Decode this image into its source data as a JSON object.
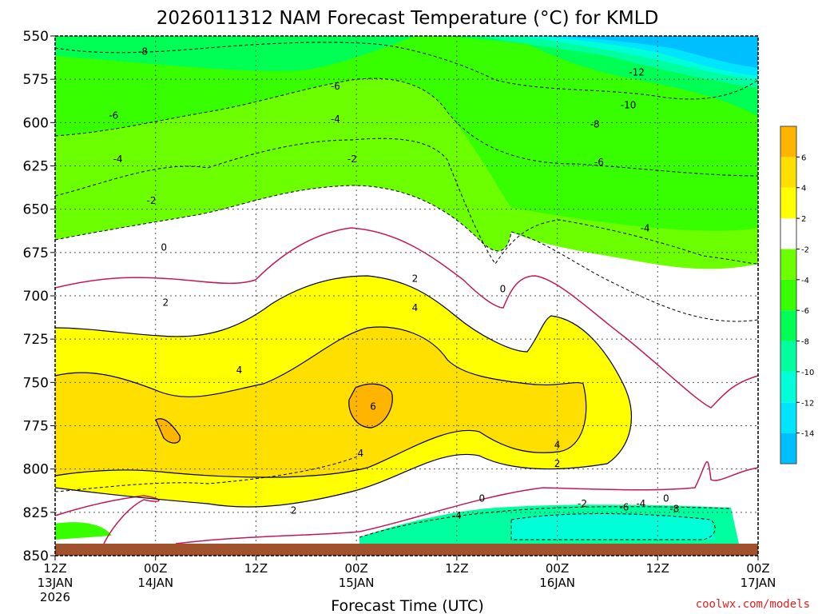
{
  "chart_data": {
    "type": "heatmap",
    "title": "2026011312 NAM Forecast Temperature (°C) for KMLD",
    "xlabel": "Forecast Time (UTC)",
    "ylabel": "",
    "credit": "coolwx.com/models",
    "y_range": [
      850,
      550
    ],
    "y_ticks": [
      "550",
      "575",
      "600",
      "625",
      "650",
      "675",
      "700",
      "725",
      "750",
      "775",
      "800",
      "825",
      "850"
    ],
    "x_range_hours": [
      0,
      84
    ],
    "x_ticks": [
      {
        "hour": 0,
        "line1": "12Z",
        "line2": "13JAN",
        "line3": "2026"
      },
      {
        "hour": 12,
        "line1": "00Z",
        "line2": "14JAN",
        "line3": ""
      },
      {
        "hour": 24,
        "line1": "12Z",
        "line2": "",
        "line3": ""
      },
      {
        "hour": 36,
        "line1": "00Z",
        "line2": "15JAN",
        "line3": ""
      },
      {
        "hour": 48,
        "line1": "12Z",
        "line2": "",
        "line3": ""
      },
      {
        "hour": 60,
        "line1": "00Z",
        "line2": "16JAN",
        "line3": ""
      },
      {
        "hour": 72,
        "line1": "12Z",
        "line2": "",
        "line3": ""
      },
      {
        "hour": 84,
        "line1": "00Z",
        "line2": "17JAN",
        "line3": ""
      }
    ],
    "colorbar": {
      "colors": [
        "#00bfff",
        "#00e5ff",
        "#00ffd9",
        "#00ff9f",
        "#00ff55",
        "#37ff00",
        "#6bff00",
        "#ffffff",
        "#ffff00",
        "#ffdf00",
        "#ffb400"
      ],
      "ticks": [
        "-14",
        "-12",
        "-10",
        "-8",
        "-6",
        "-4",
        "-2",
        "2",
        "4",
        "6"
      ]
    },
    "contour_labels": [
      {
        "text": "-8",
        "hour": 10.5,
        "p": 559
      },
      {
        "text": "-6",
        "hour": 7,
        "p": 596
      },
      {
        "text": "-4",
        "hour": 7.5,
        "p": 621
      },
      {
        "text": "-2",
        "hour": 11.5,
        "p": 645
      },
      {
        "text": "0",
        "hour": 13,
        "p": 672
      },
      {
        "text": "2",
        "hour": 13.2,
        "p": 704
      },
      {
        "text": "4",
        "hour": 22,
        "p": 743
      },
      {
        "text": "-6",
        "hour": 33.5,
        "p": 579
      },
      {
        "text": "-4",
        "hour": 33.5,
        "p": 598
      },
      {
        "text": "-2",
        "hour": 35.5,
        "p": 621
      },
      {
        "text": "2",
        "hour": 43,
        "p": 690
      },
      {
        "text": "4",
        "hour": 43,
        "p": 707
      },
      {
        "text": "6",
        "hour": 38,
        "p": 764
      },
      {
        "text": "4",
        "hour": 36.5,
        "p": 791
      },
      {
        "text": "2",
        "hour": 28.5,
        "p": 824
      },
      {
        "text": "-12",
        "hour": 69.5,
        "p": 571
      },
      {
        "text": "-10",
        "hour": 68.5,
        "p": 590
      },
      {
        "text": "-8",
        "hour": 64.5,
        "p": 601
      },
      {
        "text": "-6",
        "hour": 65,
        "p": 623
      },
      {
        "text": "-4",
        "hour": 70.5,
        "p": 661
      },
      {
        "text": "0",
        "hour": 53.5,
        "p": 696
      },
      {
        "text": "4",
        "hour": 60,
        "p": 786
      },
      {
        "text": "2",
        "hour": 60,
        "p": 797
      },
      {
        "text": "0",
        "hour": 51,
        "p": 817
      },
      {
        "text": "0",
        "hour": 73,
        "p": 817
      },
      {
        "text": "-4",
        "hour": 48,
        "p": 827
      },
      {
        "text": "-2",
        "hour": 63,
        "p": 820
      },
      {
        "text": "-6",
        "hour": 68,
        "p": 822
      },
      {
        "text": "-4",
        "hour": 70,
        "p": 820
      },
      {
        "text": "-8",
        "hour": 74,
        "p": 823
      }
    ]
  }
}
